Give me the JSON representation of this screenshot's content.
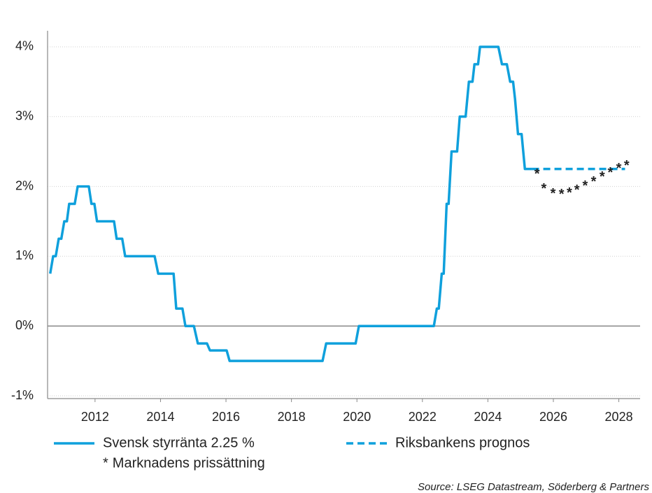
{
  "chart_data": {
    "type": "line",
    "source": "Source: LSEG Datastream, Söderberg & Partners",
    "xlim": [
      2010.55,
      2028.65
    ],
    "xticks": [
      2012,
      2014,
      2016,
      2018,
      2020,
      2022,
      2024,
      2026,
      2028
    ],
    "ylim": [
      -1.04,
      4.23
    ],
    "yticks": [
      {
        "value": -1,
        "label": "-1%"
      },
      {
        "value": 0,
        "label": "0%"
      },
      {
        "value": 1,
        "label": "1%"
      },
      {
        "value": 2,
        "label": "2%"
      },
      {
        "value": 3,
        "label": "3%"
      },
      {
        "value": 4,
        "label": "4%"
      }
    ],
    "grid": true,
    "series": [
      {
        "name": "Svensk styrränta 2.25 %",
        "color": "#0fa0dc",
        "style": "solid",
        "x": [
          2010.63,
          2010.72,
          2010.8,
          2010.89,
          2010.97,
          2011.06,
          2011.14,
          2011.21,
          2011.38,
          2011.47,
          2011.81,
          2011.89,
          2011.98,
          2012.06,
          2012.58,
          2012.66,
          2012.83,
          2012.92,
          2013.82,
          2013.93,
          2014.4,
          2014.48,
          2014.67,
          2014.76,
          2015.02,
          2015.14,
          2015.42,
          2015.51,
          2016.02,
          2016.11,
          2018.95,
          2019.06,
          2019.96,
          2020.06,
          2022.35,
          2022.44,
          2022.5,
          2022.59,
          2022.65,
          2022.74,
          2022.8,
          2022.89,
          2023.06,
          2023.14,
          2023.32,
          2023.42,
          2023.53,
          2023.59,
          2023.7,
          2023.76,
          2024.32,
          2024.43,
          2024.58,
          2024.68,
          2024.77,
          2024.83,
          2024.92,
          2025.03,
          2025.13,
          2025.35
        ],
        "values": [
          0.75,
          1.0,
          1.0,
          1.25,
          1.25,
          1.5,
          1.5,
          1.75,
          1.75,
          2.0,
          2.0,
          1.75,
          1.75,
          1.5,
          1.5,
          1.25,
          1.25,
          1.0,
          1.0,
          0.75,
          0.75,
          0.25,
          0.25,
          0,
          0,
          -0.25,
          -0.25,
          -0.35,
          -0.35,
          -0.5,
          -0.5,
          -0.25,
          -0.25,
          0,
          0,
          0.25,
          0.25,
          0.75,
          0.75,
          1.75,
          1.75,
          2.5,
          2.5,
          3.0,
          3.0,
          3.5,
          3.5,
          3.75,
          3.75,
          4.0,
          4.0,
          3.75,
          3.75,
          3.5,
          3.5,
          3.25,
          2.75,
          2.75,
          2.25,
          2.25
        ]
      },
      {
        "name": "Riksbankens prognos",
        "color": "#0fa0dc",
        "style": "dashed",
        "x": [
          2025.35,
          2028.19
        ],
        "values": [
          2.25,
          2.25
        ]
      },
      {
        "name": "Marknadens prissättning",
        "marker": "*",
        "color": "#0fa0dc",
        "style": "markers",
        "x": [
          2025.5,
          2025.71,
          2025.99,
          2026.25,
          2026.49,
          2026.72,
          2026.97,
          2027.23,
          2027.49,
          2027.74,
          2028.0,
          2028.24
        ],
        "values": [
          2.21,
          2.0,
          1.93,
          1.92,
          1.94,
          1.98,
          2.04,
          2.1,
          2.17,
          2.23,
          2.29,
          2.33
        ]
      }
    ]
  }
}
